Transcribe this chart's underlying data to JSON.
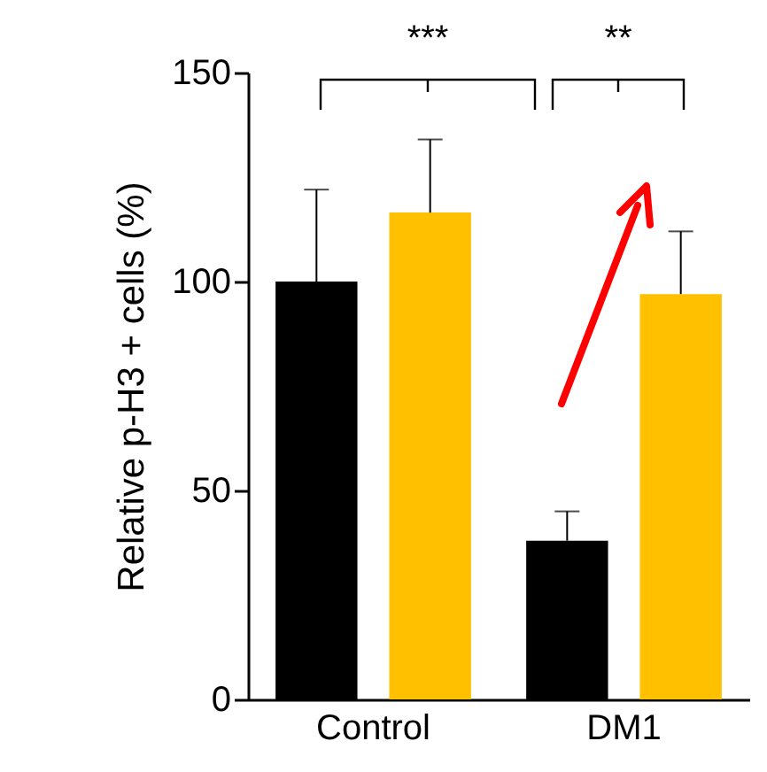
{
  "chart_data": {
    "type": "bar",
    "ylabel": "Relative p-H3 + cells (%)",
    "categories": [
      "Control",
      "DM1"
    ],
    "series": [
      {
        "color": "#000000",
        "values": [
          100,
          38
        ],
        "errors": [
          [
            100,
            122
          ],
          [
            38,
            45
          ]
        ]
      },
      {
        "color": "#ffc000",
        "values": [
          116.5,
          97
        ],
        "errors": [
          [
            116.5,
            134
          ],
          [
            97,
            112
          ]
        ]
      }
    ],
    "ylim": [
      0,
      150
    ],
    "yticks": [
      0,
      50,
      100,
      150
    ],
    "grid": false,
    "legend": false,
    "annotations": [
      "***",
      "**"
    ]
  }
}
